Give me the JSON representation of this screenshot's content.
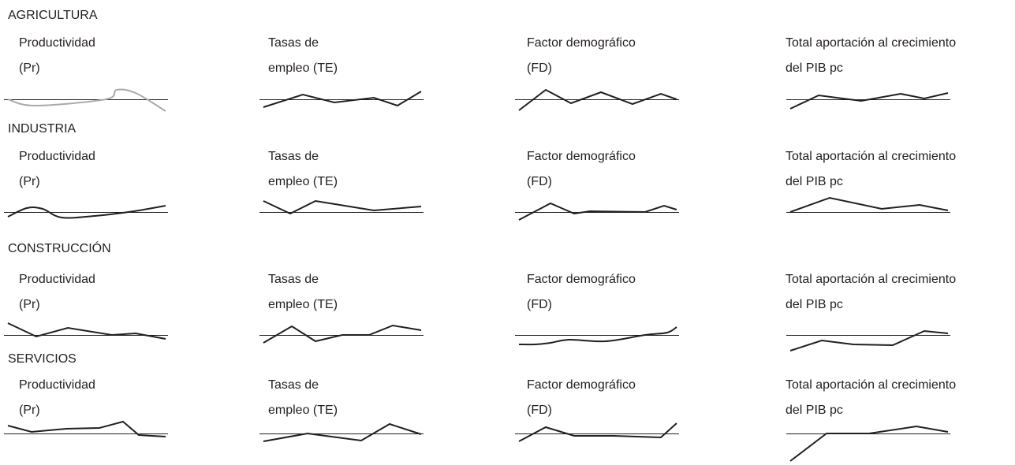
{
  "chart_data": {
    "type": "line",
    "column_labels": [
      [
        "Productividad",
        "(Pr)"
      ],
      [
        "Tasas de",
        "empleo (TE)"
      ],
      [
        "Factor demográfico",
        "(FD)"
      ],
      [
        "Total aportación al crecimiento",
        "del PIB pc"
      ]
    ],
    "sectors": [
      {
        "name": "AGRICULTURA",
        "charts": [
          {
            "color": "#a7a9ac",
            "smooth": true,
            "x": [
              0,
              0.17,
              0.62,
              0.69,
              0.81,
              1.0
            ],
            "y": [
              0.0,
              -0.8,
              0.0,
              1.2,
              0.8,
              -1.5
            ]
          },
          {
            "color": "#231f20",
            "x": [
              0,
              0.25,
              0.45,
              0.7,
              0.85,
              1.0
            ],
            "y": [
              -1.0,
              0.6,
              -0.4,
              0.2,
              -0.8,
              1.0
            ]
          },
          {
            "color": "#231f20",
            "x": [
              0,
              0.17,
              0.33,
              0.52,
              0.72,
              0.9,
              1.0
            ],
            "y": [
              -1.4,
              1.2,
              -0.5,
              0.9,
              -0.6,
              0.7,
              0.0
            ]
          },
          {
            "color": "#231f20",
            "x": [
              0,
              0.18,
              0.45,
              0.7,
              0.85,
              1.0
            ],
            "y": [
              -1.2,
              0.5,
              -0.2,
              0.7,
              0.1,
              0.8
            ]
          }
        ]
      },
      {
        "name": "INDUSTRIA",
        "charts": [
          {
            "color": "#231f20",
            "smooth": true,
            "x": [
              0,
              0.12,
              0.22,
              0.34,
              0.55,
              0.8,
              1.0
            ],
            "y": [
              -0.6,
              0.5,
              0.4,
              -0.7,
              -0.5,
              0.1,
              0.8
            ]
          },
          {
            "color": "#231f20",
            "x": [
              0,
              0.17,
              0.33,
              0.7,
              1.0
            ],
            "y": [
              1.4,
              -0.2,
              1.4,
              0.2,
              0.7
            ]
          },
          {
            "color": "#231f20",
            "x": [
              0,
              0.2,
              0.35,
              0.45,
              0.8,
              0.92,
              1.0
            ],
            "y": [
              -1.0,
              1.1,
              -0.2,
              0.1,
              0.0,
              0.8,
              0.3
            ]
          },
          {
            "color": "#231f20",
            "x": [
              0,
              0.25,
              0.58,
              0.82,
              1.0
            ],
            "y": [
              0.0,
              1.8,
              0.4,
              0.9,
              0.2
            ]
          }
        ]
      },
      {
        "name": "CONSTRUCCIÓN",
        "charts": [
          {
            "color": "#231f20",
            "x": [
              0,
              0.18,
              0.38,
              0.66,
              0.81,
              1.0
            ],
            "y": [
              1.5,
              -0.2,
              0.9,
              0.0,
              0.2,
              -0.5
            ]
          },
          {
            "color": "#231f20",
            "x": [
              0,
              0.18,
              0.33,
              0.5,
              0.67,
              0.82,
              1.0
            ],
            "y": [
              -1.0,
              1.1,
              -0.8,
              0.0,
              0.0,
              1.2,
              0.6
            ]
          },
          {
            "color": "#231f20",
            "smooth": true,
            "x": [
              0,
              0.1,
              0.2,
              0.32,
              0.55,
              0.8,
              0.94,
              1.0
            ],
            "y": [
              -1.2,
              -1.2,
              -1.0,
              -0.6,
              -0.8,
              0.0,
              0.3,
              1.0
            ]
          },
          {
            "color": "#231f20",
            "x": [
              0,
              0.2,
              0.4,
              0.65,
              0.85,
              1.0
            ],
            "y": [
              -2.0,
              -0.7,
              -1.2,
              -1.3,
              0.5,
              0.2
            ]
          }
        ]
      },
      {
        "name": "SERVICIOS",
        "charts": [
          {
            "color": "#231f20",
            "x": [
              0,
              0.15,
              0.37,
              0.58,
              0.73,
              0.83,
              1.0
            ],
            "y": [
              1.0,
              0.2,
              0.6,
              0.7,
              1.5,
              -0.2,
              -0.4
            ]
          },
          {
            "color": "#231f20",
            "x": [
              0,
              0.28,
              0.62,
              0.8,
              1.0
            ],
            "y": [
              -1.0,
              0.0,
              -0.9,
              1.2,
              -0.1
            ]
          },
          {
            "color": "#231f20",
            "x": [
              0,
              0.17,
              0.35,
              0.6,
              0.9,
              1.0
            ],
            "y": [
              -1.0,
              0.8,
              -0.3,
              -0.3,
              -0.5,
              1.3
            ]
          },
          {
            "color": "#231f20",
            "x": [
              0,
              0.23,
              0.5,
              0.8,
              1.0
            ],
            "y": [
              -3.5,
              0.0,
              0.0,
              0.9,
              0.2
            ]
          }
        ]
      }
    ]
  }
}
